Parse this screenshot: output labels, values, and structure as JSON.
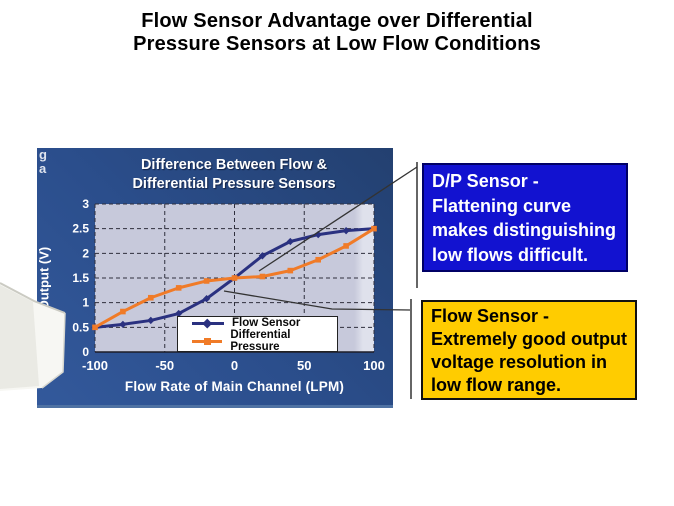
{
  "slide": {
    "title_line1": "Flow Sensor Advantage over Differential",
    "title_line2": "Pressure Sensors at Low Flow Conditions"
  },
  "chart": {
    "corner_text_top": "g",
    "corner_text_bottom": "a",
    "title_line1": "Difference Between Flow &",
    "title_line2": "Differential Pressure Sensors",
    "xlabel": "Flow Rate of Main Channel (LPM)",
    "ylabel": "Output (V)"
  },
  "chart_data": {
    "type": "line",
    "title": "Difference Between Flow & Differential Pressure Sensors",
    "xlabel": "Flow Rate of Main Channel (LPM)",
    "ylabel": "Output (V)",
    "x": [
      -100,
      -80,
      -60,
      -40,
      -20,
      0,
      20,
      40,
      60,
      80,
      100
    ],
    "series": [
      {
        "name": "Flow Sensor",
        "color": "#2a3180",
        "marker": "diamond",
        "values": [
          0.5,
          0.56,
          0.64,
          0.78,
          1.08,
          1.5,
          1.95,
          2.24,
          2.38,
          2.46,
          2.5
        ]
      },
      {
        "name": "Differential Pressure",
        "color": "#f07b28",
        "marker": "square",
        "values": [
          0.5,
          0.82,
          1.1,
          1.3,
          1.44,
          1.5,
          1.53,
          1.65,
          1.87,
          2.15,
          2.5
        ]
      }
    ],
    "xlim": [
      -100,
      100
    ],
    "ylim": [
      0,
      3
    ],
    "xticks": [
      -100,
      -50,
      0,
      50,
      100
    ],
    "yticks": [
      0,
      0.5,
      1,
      1.5,
      2,
      2.5,
      3
    ],
    "grid": true,
    "legend_position": "inside-bottom-center"
  },
  "callouts": {
    "dp": {
      "lines": [
        "D/P Sensor -",
        "Flattening curve",
        "makes distinguishing",
        "low flows difficult."
      ]
    },
    "flow": {
      "lines": [
        "Flow Sensor -",
        "Extremely good output",
        "voltage resolution in",
        "low flow range."
      ]
    }
  },
  "colors": {
    "page-bg": "#ffffff",
    "title-text": "#000000",
    "panel-blue": "#2b4e8c",
    "plot-bg": "#c7c9db",
    "plot-bg-light": "#dfe1ec",
    "grid-line": "#2f2f3d",
    "flow-sensor": "#2a3180",
    "diff-pressure": "#f07b28",
    "chart-text": "#ffffff",
    "legend-bg": "#ffffff",
    "legend-border": "#222222",
    "callout-dp-bg": "#1212d0",
    "callout-dp-border": "#000066",
    "callout-dp-text": "#ffffff",
    "callout-flow-bg": "#ffcc00",
    "callout-flow-border": "#111111",
    "callout-flow-text": "#000000",
    "connector": "#333333"
  }
}
